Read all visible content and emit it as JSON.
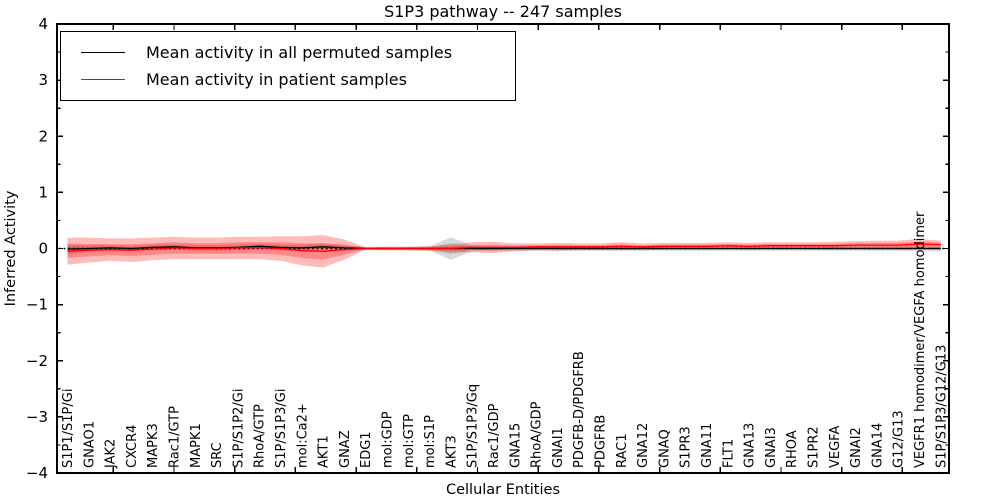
{
  "title": "S1P3 pathway -- 247 samples",
  "chart_data": {
    "type": "line",
    "title": "S1P3 pathway -- 247 samples",
    "xlabel": "Cellular Entities",
    "ylabel": "Inferred Activity",
    "ylim": [
      -4,
      4
    ],
    "yticks": [
      4,
      3,
      2,
      1,
      0,
      -1,
      -2,
      -3,
      -4
    ],
    "ytick_labels": [
      "4",
      "3",
      "2",
      "1",
      "0",
      "−1",
      "−2",
      "−3",
      "−4"
    ],
    "grid": false,
    "legend_position": "upper left",
    "zero_reference_line": 0,
    "categories": [
      "S1P1/S1P/Gi",
      "GNAO1",
      "JAK2",
      "CXCR4",
      "MAPK3",
      "Rac1/GTP",
      "MAPK1",
      "SRC",
      "S1P/S1P2/Gi",
      "RhoA/GTP",
      "S1P/S1P3/Gi",
      "mol:Ca2+",
      "AKT1",
      "GNAZ",
      "EDG1",
      "mol:GDP",
      "mol:GTP",
      "mol:S1P",
      "AKT3",
      "S1P/S1P3/Gq",
      "Rac1/GDP",
      "GNA15",
      "RhoA/GDP",
      "GNAI1",
      "PDGFB-D/PDGFRB",
      "PDGFRB",
      "RAC1",
      "GNA12",
      "GNAQ",
      "S1PR3",
      "GNA11",
      "FLT1",
      "GNA13",
      "GNAI3",
      "RHOA",
      "S1PR2",
      "VEGFA",
      "GNAI2",
      "GNA14",
      "G12/G13",
      "VEGFR1 homodimer/VEGFA homodimer",
      "S1P/S1P3/G12/G13"
    ],
    "series": [
      {
        "name": "Mean activity in all permuted samples",
        "color": "#000000",
        "band_color": "#808080",
        "band_opacity": 0.3,
        "values": [
          -0.01,
          0.0,
          0.01,
          0.0,
          0.02,
          0.03,
          0.01,
          0.01,
          0.02,
          0.04,
          0.02,
          0.01,
          0.03,
          0.01,
          0.0,
          0.0,
          0.0,
          0.0,
          0.0,
          0.0,
          0.0,
          0.0,
          0.0,
          0.0,
          0.0,
          0.0,
          0.0,
          0.0,
          0.0,
          0.0,
          0.0,
          0.0,
          0.0,
          0.0,
          0.0,
          0.0,
          0.0,
          0.0,
          0.0,
          0.0,
          0.0,
          0.0
        ],
        "std": [
          0.1,
          0.06,
          0.05,
          0.05,
          0.05,
          0.05,
          0.05,
          0.05,
          0.05,
          0.05,
          0.05,
          0.06,
          0.06,
          0.05,
          0.03,
          0.03,
          0.03,
          0.04,
          0.2,
          0.05,
          0.04,
          0.04,
          0.04,
          0.04,
          0.04,
          0.04,
          0.04,
          0.04,
          0.04,
          0.04,
          0.04,
          0.04,
          0.04,
          0.04,
          0.04,
          0.04,
          0.04,
          0.04,
          0.04,
          0.04,
          0.05,
          0.05
        ]
      },
      {
        "name": "Mean activity in patient samples",
        "color": "#ff0000",
        "band_color": "#ff0000",
        "band_opacity": 0.27,
        "values": [
          -0.05,
          -0.03,
          -0.02,
          -0.03,
          -0.01,
          0.01,
          0.0,
          0.0,
          0.01,
          0.01,
          0.0,
          -0.04,
          -0.05,
          -0.02,
          0.0,
          0.0,
          0.0,
          0.0,
          0.0,
          0.02,
          0.02,
          0.02,
          0.03,
          0.03,
          0.03,
          0.03,
          0.04,
          0.03,
          0.04,
          0.04,
          0.04,
          0.05,
          0.04,
          0.05,
          0.05,
          0.05,
          0.05,
          0.06,
          0.06,
          0.06,
          0.08,
          0.07
        ],
        "std": [
          0.24,
          0.22,
          0.2,
          0.21,
          0.2,
          0.2,
          0.19,
          0.19,
          0.2,
          0.2,
          0.22,
          0.26,
          0.29,
          0.18,
          0.02,
          0.03,
          0.03,
          0.04,
          0.07,
          0.09,
          0.1,
          0.07,
          0.06,
          0.07,
          0.06,
          0.06,
          0.07,
          0.06,
          0.06,
          0.06,
          0.06,
          0.06,
          0.06,
          0.06,
          0.06,
          0.06,
          0.07,
          0.07,
          0.08,
          0.08,
          0.09,
          0.07
        ]
      }
    ]
  },
  "legend": {
    "items": [
      {
        "label": "Mean activity in all permuted samples",
        "color": "#000000"
      },
      {
        "label": "Mean activity in patient samples",
        "color": "#ff0000"
      }
    ]
  }
}
